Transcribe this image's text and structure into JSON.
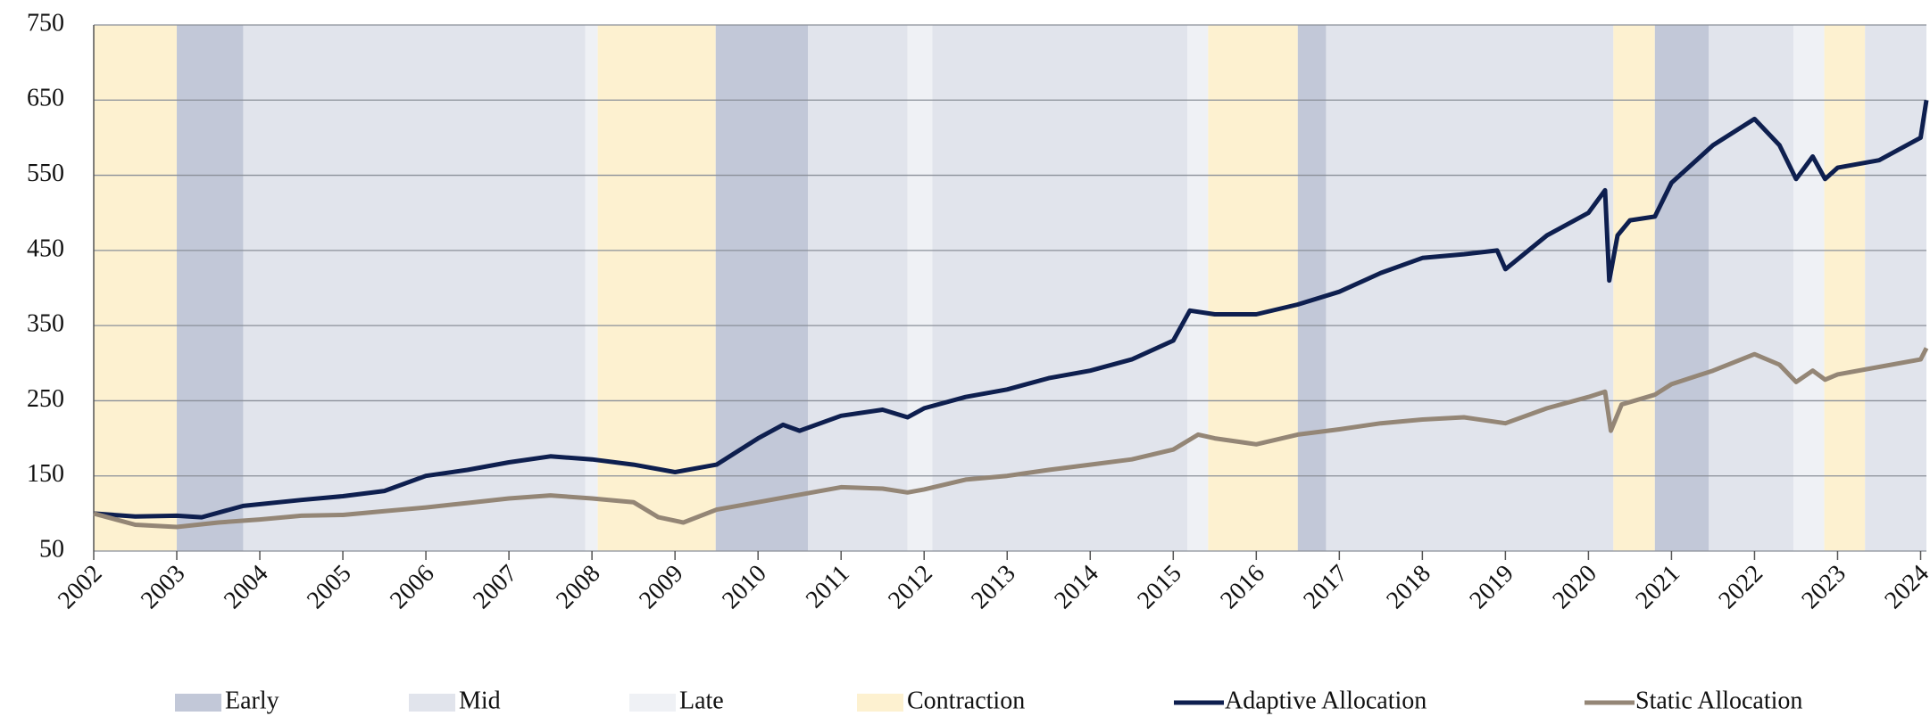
{
  "chart_data": {
    "type": "line",
    "xlim": [
      2002,
      2024.07
    ],
    "xticks": [
      2002,
      2003,
      2004,
      2005,
      2006,
      2007,
      2008,
      2009,
      2010,
      2011,
      2012,
      2013,
      2014,
      2015,
      2016,
      2017,
      2018,
      2019,
      2020,
      2021,
      2022,
      2023,
      2024
    ],
    "ylim": [
      50,
      750
    ],
    "yticks": [
      50,
      150,
      250,
      350,
      450,
      550,
      650,
      750
    ],
    "grid": true,
    "phases": [
      {
        "name": "Early",
        "color": "#c2c8d8"
      },
      {
        "name": "Mid",
        "color": "#e1e4ec"
      },
      {
        "name": "Late",
        "color": "#eff1f5"
      },
      {
        "name": "Contraction",
        "color": "#fdf1d0"
      }
    ],
    "regimes": [
      {
        "phase": 3,
        "start": 2002.0,
        "end": 2003.0
      },
      {
        "phase": 0,
        "start": 2003.0,
        "end": 2003.8
      },
      {
        "phase": 1,
        "start": 2003.8,
        "end": 2007.92
      },
      {
        "phase": 2,
        "start": 2007.92,
        "end": 2008.07
      },
      {
        "phase": 3,
        "start": 2008.07,
        "end": 2009.49
      },
      {
        "phase": 0,
        "start": 2009.49,
        "end": 2010.6
      },
      {
        "phase": 1,
        "start": 2010.6,
        "end": 2011.8
      },
      {
        "phase": 2,
        "start": 2011.8,
        "end": 2012.1
      },
      {
        "phase": 1,
        "start": 2012.1,
        "end": 2015.17
      },
      {
        "phase": 2,
        "start": 2015.17,
        "end": 2015.42
      },
      {
        "phase": 3,
        "start": 2015.42,
        "end": 2016.5
      },
      {
        "phase": 0,
        "start": 2016.5,
        "end": 2016.84
      },
      {
        "phase": 1,
        "start": 2016.84,
        "end": 2020.3
      },
      {
        "phase": 3,
        "start": 2020.3,
        "end": 2020.8
      },
      {
        "phase": 0,
        "start": 2020.8,
        "end": 2021.45
      },
      {
        "phase": 1,
        "start": 2021.45,
        "end": 2022.47
      },
      {
        "phase": 2,
        "start": 2022.47,
        "end": 2022.84
      },
      {
        "phase": 3,
        "start": 2022.84,
        "end": 2023.33
      },
      {
        "phase": 1,
        "start": 2023.33,
        "end": 2024.07
      }
    ],
    "series": [
      {
        "name": "Adaptive Allocation",
        "color": "#0e1f4f",
        "x": [
          2002,
          2002.5,
          2003,
          2003.3,
          2003.8,
          2004.5,
          2005,
          2005.5,
          2006,
          2006.5,
          2007,
          2007.5,
          2008,
          2008.5,
          2009,
          2009.5,
          2010,
          2010.3,
          2010.5,
          2011,
          2011.5,
          2011.8,
          2012,
          2012.5,
          2013,
          2013.5,
          2014,
          2014.5,
          2015,
          2015.2,
          2015.5,
          2016,
          2016.5,
          2017,
          2017.5,
          2018,
          2018.5,
          2018.9,
          2019,
          2019.5,
          2020,
          2020.2,
          2020.25,
          2020.35,
          2020.5,
          2020.8,
          2021,
          2021.5,
          2022,
          2022.3,
          2022.5,
          2022.7,
          2022.85,
          2023,
          2023.5,
          2024,
          2024.07
        ],
        "values": [
          100,
          96,
          97,
          95,
          110,
          118,
          123,
          130,
          150,
          158,
          168,
          176,
          172,
          165,
          155,
          165,
          200,
          218,
          210,
          230,
          238,
          228,
          240,
          255,
          265,
          280,
          290,
          305,
          330,
          370,
          365,
          365,
          378,
          395,
          420,
          440,
          445,
          450,
          425,
          470,
          500,
          530,
          410,
          470,
          490,
          495,
          540,
          590,
          625,
          590,
          545,
          575,
          545,
          560,
          570,
          600,
          650
        ]
      },
      {
        "name": "Static Allocation",
        "color": "#948676",
        "x": [
          2002,
          2002.5,
          2003,
          2003.5,
          2004,
          2004.5,
          2005,
          2005.5,
          2006,
          2006.5,
          2007,
          2007.5,
          2008,
          2008.5,
          2008.8,
          2009.1,
          2009.5,
          2010,
          2010.5,
          2011,
          2011.5,
          2011.8,
          2012,
          2012.5,
          2013,
          2013.5,
          2014,
          2014.5,
          2015,
          2015.3,
          2015.5,
          2016,
          2016.5,
          2017,
          2017.5,
          2018,
          2018.5,
          2019,
          2019.5,
          2020,
          2020.2,
          2020.27,
          2020.4,
          2020.8,
          2021,
          2021.5,
          2022,
          2022.3,
          2022.5,
          2022.7,
          2022.85,
          2023,
          2023.5,
          2024,
          2024.07
        ],
        "values": [
          100,
          85,
          82,
          88,
          92,
          97,
          98,
          103,
          108,
          114,
          120,
          124,
          120,
          115,
          95,
          88,
          105,
          115,
          125,
          135,
          133,
          128,
          132,
          145,
          150,
          158,
          165,
          172,
          185,
          205,
          200,
          192,
          205,
          212,
          220,
          225,
          228,
          220,
          240,
          255,
          262,
          210,
          245,
          258,
          272,
          290,
          312,
          298,
          275,
          290,
          278,
          285,
          295,
          305,
          320
        ]
      }
    ]
  }
}
